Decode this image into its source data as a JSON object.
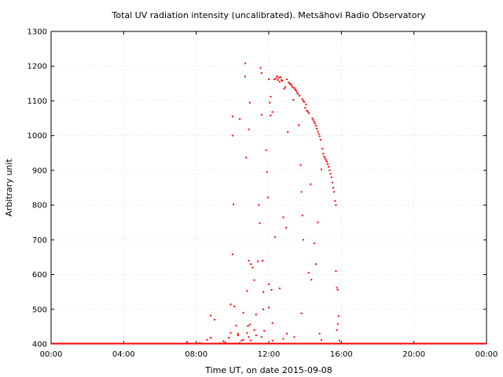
{
  "chart_data": {
    "type": "scatter",
    "title": "Total UV radiation intensity (uncalibrated). Metsähovi Radio Observatory",
    "xlabel": "Time UT, on date 2015-09-08",
    "ylabel": "Arbitrary unit",
    "xlim": [
      0,
      24
    ],
    "ylim": [
      400,
      1300
    ],
    "x_ticks": [
      {
        "value": 0,
        "label": "00:00"
      },
      {
        "value": 4,
        "label": "04:00"
      },
      {
        "value": 8,
        "label": "08:00"
      },
      {
        "value": 12,
        "label": "12:00"
      },
      {
        "value": 16,
        "label": "16:00"
      },
      {
        "value": 20,
        "label": "20:00"
      },
      {
        "value": 24,
        "label": "00:00"
      }
    ],
    "y_ticks": [
      {
        "value": 400,
        "label": "400"
      },
      {
        "value": 500,
        "label": "500"
      },
      {
        "value": 600,
        "label": "600"
      },
      {
        "value": 700,
        "label": "700"
      },
      {
        "value": 800,
        "label": "800"
      },
      {
        "value": 900,
        "label": "900"
      },
      {
        "value": 1000,
        "label": "1000"
      },
      {
        "value": 1100,
        "label": "1100"
      },
      {
        "value": 1200,
        "label": "1200"
      },
      {
        "value": 1300,
        "label": "1300"
      }
    ],
    "grid": true,
    "marker_color": "#ff0000",
    "baseline_value": 400,
    "baseline_range": [
      0,
      24
    ],
    "series": [
      {
        "values": [
          [
            7.5,
            406
          ],
          [
            8.2,
            403
          ],
          [
            8.6,
            412
          ],
          [
            8.8,
            418
          ],
          [
            8.8,
            482
          ],
          [
            9.0,
            470
          ],
          [
            9.3,
            402
          ],
          [
            9.6,
            405
          ],
          [
            9.8,
            418
          ],
          [
            9.9,
            432
          ],
          [
            9.9,
            514
          ],
          [
            10.0,
            658
          ],
          [
            10.0,
            1055
          ],
          [
            10.0,
            1000
          ],
          [
            10.05,
            802
          ],
          [
            10.1,
            508
          ],
          [
            10.2,
            453
          ],
          [
            10.3,
            430
          ],
          [
            10.4,
            1048
          ],
          [
            10.4,
            403
          ],
          [
            10.5,
            410
          ],
          [
            10.6,
            490
          ],
          [
            10.6,
            412
          ],
          [
            10.7,
            1208
          ],
          [
            10.7,
            1170
          ],
          [
            10.75,
            937
          ],
          [
            10.8,
            553
          ],
          [
            10.8,
            432
          ],
          [
            10.85,
            452
          ],
          [
            10.9,
            1018
          ],
          [
            10.9,
            640
          ],
          [
            10.95,
            1095
          ],
          [
            10.95,
            456
          ],
          [
            11.0,
            630
          ],
          [
            11.0,
            410
          ],
          [
            11.1,
            620
          ],
          [
            11.2,
            584
          ],
          [
            11.3,
            485
          ],
          [
            11.3,
            425
          ],
          [
            11.4,
            638
          ],
          [
            11.45,
            800
          ],
          [
            11.5,
            748
          ],
          [
            11.55,
            1195
          ],
          [
            11.6,
            1180
          ],
          [
            11.6,
            1060
          ],
          [
            11.65,
            640
          ],
          [
            11.7,
            500
          ],
          [
            11.7,
            550
          ],
          [
            11.75,
            438
          ],
          [
            11.85,
            958
          ],
          [
            11.9,
            895
          ],
          [
            11.95,
            822
          ],
          [
            12.0,
            1162
          ],
          [
            12.0,
            572
          ],
          [
            12.0,
            505
          ],
          [
            12.05,
            1095
          ],
          [
            12.1,
            1112
          ],
          [
            12.1,
            1058
          ],
          [
            12.15,
            556
          ],
          [
            12.2,
            1068
          ],
          [
            12.2,
            410
          ],
          [
            12.3,
            1162
          ],
          [
            12.35,
            708
          ],
          [
            12.4,
            1165
          ],
          [
            12.45,
            1171
          ],
          [
            12.5,
            1160
          ],
          [
            12.55,
            1167
          ],
          [
            12.6,
            1155
          ],
          [
            12.65,
            1168
          ],
          [
            12.7,
            1160
          ],
          [
            12.75,
            1158
          ],
          [
            12.8,
            765
          ],
          [
            12.85,
            1135
          ],
          [
            12.9,
            1140
          ],
          [
            12.95,
            735
          ],
          [
            13.0,
            1162
          ],
          [
            13.05,
            1010
          ],
          [
            13.1,
            1153
          ],
          [
            13.15,
            1150
          ],
          [
            13.2,
            1148
          ],
          [
            13.25,
            1145
          ],
          [
            13.3,
            1140
          ],
          [
            13.35,
            1103
          ],
          [
            13.4,
            1137
          ],
          [
            13.45,
            1133
          ],
          [
            13.5,
            1130
          ],
          [
            13.55,
            1125
          ],
          [
            13.6,
            1120
          ],
          [
            13.65,
            1030
          ],
          [
            13.7,
            1115
          ],
          [
            13.75,
            915
          ],
          [
            13.8,
            838
          ],
          [
            13.85,
            1105
          ],
          [
            13.9,
            1100
          ],
          [
            13.95,
            1097
          ],
          [
            13.8,
            488
          ],
          [
            13.85,
            770
          ],
          [
            13.9,
            700
          ],
          [
            14.0,
            1080
          ],
          [
            14.05,
            1090
          ],
          [
            14.1,
            1072
          ],
          [
            14.15,
            1070
          ],
          [
            14.2,
            1065
          ],
          [
            14.2,
            605
          ],
          [
            14.3,
            860
          ],
          [
            14.35,
            585
          ],
          [
            14.4,
            1050
          ],
          [
            14.45,
            1045
          ],
          [
            14.5,
            1040
          ],
          [
            14.55,
            1035
          ],
          [
            14.6,
            1028
          ],
          [
            14.65,
            1020
          ],
          [
            14.7,
            1012
          ],
          [
            14.75,
            1005
          ],
          [
            14.8,
            998
          ],
          [
            14.7,
            750
          ],
          [
            14.6,
            630
          ],
          [
            14.5,
            690
          ],
          [
            14.85,
            988
          ],
          [
            14.9,
            903
          ],
          [
            14.95,
            962
          ],
          [
            15.0,
            948
          ],
          [
            15.05,
            940
          ],
          [
            15.1,
            935
          ],
          [
            15.15,
            930
          ],
          [
            15.2,
            925
          ],
          [
            15.25,
            918
          ],
          [
            15.3,
            910
          ],
          [
            15.35,
            900
          ],
          [
            15.4,
            890
          ],
          [
            15.45,
            880
          ],
          [
            15.5,
            865
          ],
          [
            15.55,
            850
          ],
          [
            15.6,
            838
          ],
          [
            15.65,
            812
          ],
          [
            15.7,
            800
          ],
          [
            15.7,
            610
          ],
          [
            15.75,
            562
          ],
          [
            15.8,
            556
          ],
          [
            15.85,
            480
          ],
          [
            15.8,
            458
          ],
          [
            15.75,
            440
          ],
          [
            15.9,
            410
          ],
          [
            16.0,
            402
          ],
          [
            12.6,
            560
          ],
          [
            12.2,
            460
          ],
          [
            11.2,
            440
          ],
          [
            10.9,
            420
          ],
          [
            13.4,
            420
          ],
          [
            13.0,
            430
          ],
          [
            14.8,
            430
          ],
          [
            14.9,
            412
          ],
          [
            12.8,
            415
          ],
          [
            11.6,
            420
          ],
          [
            10.3,
            425
          ],
          [
            9.5,
            408
          ]
        ]
      }
    ]
  }
}
